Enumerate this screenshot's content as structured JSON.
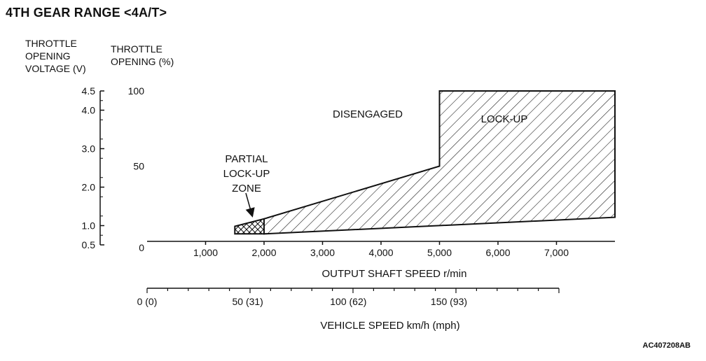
{
  "title": "4TH GEAR RANGE <4A/T>",
  "left_axis": {
    "label_lines": [
      "THROTTLE",
      "OPENING",
      "VOLTAGE (V)"
    ],
    "ticks": [
      {
        "value": 4.5,
        "label": "4.5"
      },
      {
        "value": 4.0,
        "label": "4.0"
      },
      {
        "value": 3.0,
        "label": "3.0"
      },
      {
        "value": 2.0,
        "label": "2.0"
      },
      {
        "value": 1.0,
        "label": "1.0"
      },
      {
        "value": 0.5,
        "label": "0.5"
      }
    ]
  },
  "right_axis": {
    "label_lines": [
      "THROTTLE",
      "OPENING (%)"
    ],
    "ticks": [
      {
        "value": 100,
        "label": "100"
      },
      {
        "value": 50,
        "label": "50"
      },
      {
        "value": 0,
        "label": "0"
      }
    ]
  },
  "x_axis": {
    "label": "OUTPUT SHAFT SPEED r/min",
    "ticks": [
      {
        "value": 1000,
        "label": "1,000"
      },
      {
        "value": 2000,
        "label": "2,000"
      },
      {
        "value": 3000,
        "label": "3,000"
      },
      {
        "value": 4000,
        "label": "4,000"
      },
      {
        "value": 5000,
        "label": "5,000"
      },
      {
        "value": 6000,
        "label": "6,000"
      },
      {
        "value": 7000,
        "label": "7,000"
      }
    ]
  },
  "vehicle_axis": {
    "label": "VEHICLE SPEED km/h (mph)",
    "ticks": [
      {
        "value": 0,
        "label": "0 (0)"
      },
      {
        "value": 50,
        "label": "50 (31)"
      },
      {
        "value": 100,
        "label": "100 (62)"
      },
      {
        "value": 150,
        "label": "150 (93)"
      }
    ]
  },
  "zones": {
    "disengaged": "DISENGAGED",
    "lockup": "LOCK-UP",
    "partial_lines": [
      "PARTIAL",
      "LOCK-UP",
      "ZONE"
    ]
  },
  "chart_data": {
    "type": "area",
    "title": "4TH GEAR RANGE <4A/T>",
    "xlabel": "OUTPUT SHAFT SPEED r/min",
    "ylabel": "THROTTLE OPENING (%)",
    "xlim": [
      0,
      8000
    ],
    "ylim": [
      0,
      100
    ],
    "series": [
      {
        "name": "LOCK-UP",
        "upper": [
          [
            2000,
            15
          ],
          [
            5000,
            50
          ],
          [
            5000,
            100
          ],
          [
            8000,
            100
          ]
        ],
        "lower": [
          [
            2000,
            5
          ],
          [
            8000,
            16
          ]
        ]
      },
      {
        "name": "PARTIAL LOCK-UP ZONE",
        "upper": [
          [
            1500,
            10
          ],
          [
            2000,
            15
          ]
        ],
        "lower": [
          [
            1500,
            5
          ],
          [
            2000,
            5
          ]
        ]
      },
      {
        "name": "DISENGAGED",
        "region": "above lock-up boundary"
      }
    ]
  },
  "figure_code": "AC407208AB"
}
